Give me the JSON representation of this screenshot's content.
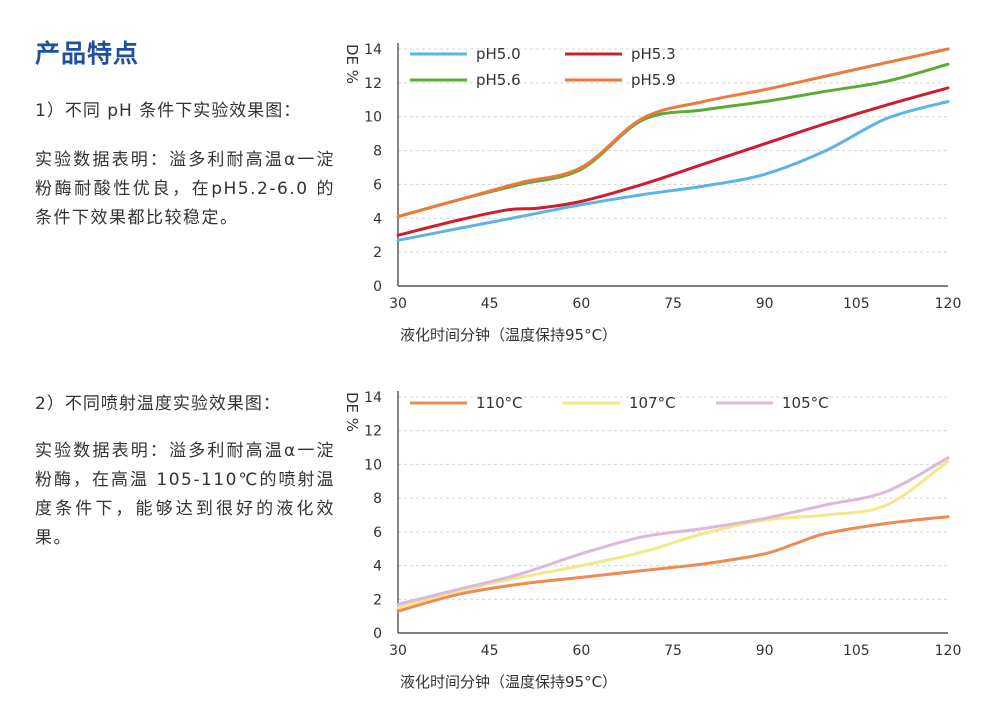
{
  "heading": "产品特点",
  "sections": [
    {
      "subtitle": "1）不同 pH 条件下实验效果图：",
      "description": "实验数据表明：溢多利耐高温α一淀粉酶耐酸性优良，在pH5.2-6.0 的条件下效果都比较稳定。"
    },
    {
      "subtitle": "2）不同喷射温度实验效果图：",
      "description": "实验数据表明：溢多利耐高温α一淀粉酶，在高温 105-110℃的喷射温度条件下，能够达到很好的液化效果。"
    }
  ],
  "chart_data": [
    {
      "type": "line",
      "ylabel": "DE %",
      "xlabel": "液化时间分钟（温度保持95°C）",
      "xticks": [
        30,
        45,
        60,
        75,
        90,
        105,
        120
      ],
      "yticks": [
        0,
        2,
        4,
        6,
        8,
        10,
        12,
        14
      ],
      "xlim": [
        30,
        120
      ],
      "ylim": [
        0,
        14
      ],
      "grid": "horizontal dashed",
      "legend_position": "top",
      "series": [
        {
          "name": "pH5.0",
          "color": "#5ab4e6",
          "x": [
            30,
            40,
            50,
            60,
            70,
            80,
            90,
            100,
            110,
            120
          ],
          "y": [
            2.7,
            3.4,
            4.1,
            4.8,
            5.4,
            5.9,
            6.6,
            8.0,
            9.9,
            10.9
          ]
        },
        {
          "name": "pH5.3",
          "color": "#cc1f2c",
          "x": [
            30,
            40,
            48,
            53,
            60,
            70,
            80,
            90,
            100,
            110,
            120
          ],
          "y": [
            3.0,
            3.9,
            4.5,
            4.6,
            5.0,
            6.0,
            7.2,
            8.4,
            9.6,
            10.7,
            11.7
          ]
        },
        {
          "name": "pH5.6",
          "color": "#5bab3a",
          "x": [
            30,
            40,
            50,
            60,
            70,
            80,
            90,
            100,
            110,
            120
          ],
          "y": [
            4.1,
            5.1,
            6.0,
            6.9,
            9.8,
            10.4,
            10.9,
            11.5,
            12.1,
            13.1
          ]
        },
        {
          "name": "pH5.9",
          "color": "#eb7a3c",
          "x": [
            30,
            40,
            50,
            60,
            70,
            80,
            90,
            100,
            110,
            120
          ],
          "y": [
            4.1,
            5.1,
            6.1,
            7.0,
            9.9,
            10.9,
            11.6,
            12.4,
            13.2,
            14.0
          ]
        }
      ]
    },
    {
      "type": "line",
      "ylabel": "DE %",
      "xlabel": "液化时间分钟（温度保持95°C）",
      "xticks": [
        30,
        45,
        60,
        75,
        90,
        105,
        120
      ],
      "yticks": [
        0,
        2,
        4,
        6,
        8,
        10,
        12,
        14
      ],
      "xlim": [
        30,
        120
      ],
      "ylim": [
        0,
        14
      ],
      "grid": "horizontal dashed",
      "legend_position": "top",
      "series": [
        {
          "name": "110°C",
          "color": "#ee8a55",
          "x": [
            30,
            40,
            50,
            60,
            70,
            80,
            90,
            95,
            100,
            110,
            120
          ],
          "y": [
            1.3,
            2.3,
            2.9,
            3.3,
            3.7,
            4.1,
            4.7,
            5.3,
            5.9,
            6.5,
            6.9
          ]
        },
        {
          "name": "107°C",
          "color": "#f2e88a",
          "x": [
            30,
            40,
            50,
            60,
            70,
            80,
            90,
            100,
            110,
            120
          ],
          "y": [
            1.5,
            2.5,
            3.3,
            4.0,
            4.8,
            5.9,
            6.7,
            7.0,
            7.6,
            10.2
          ]
        },
        {
          "name": "105°C",
          "color": "#dcb8dc",
          "x": [
            30,
            40,
            50,
            60,
            70,
            80,
            90,
            100,
            110,
            120
          ],
          "y": [
            1.7,
            2.6,
            3.5,
            4.7,
            5.7,
            6.2,
            6.8,
            7.6,
            8.4,
            10.4
          ]
        }
      ]
    }
  ]
}
